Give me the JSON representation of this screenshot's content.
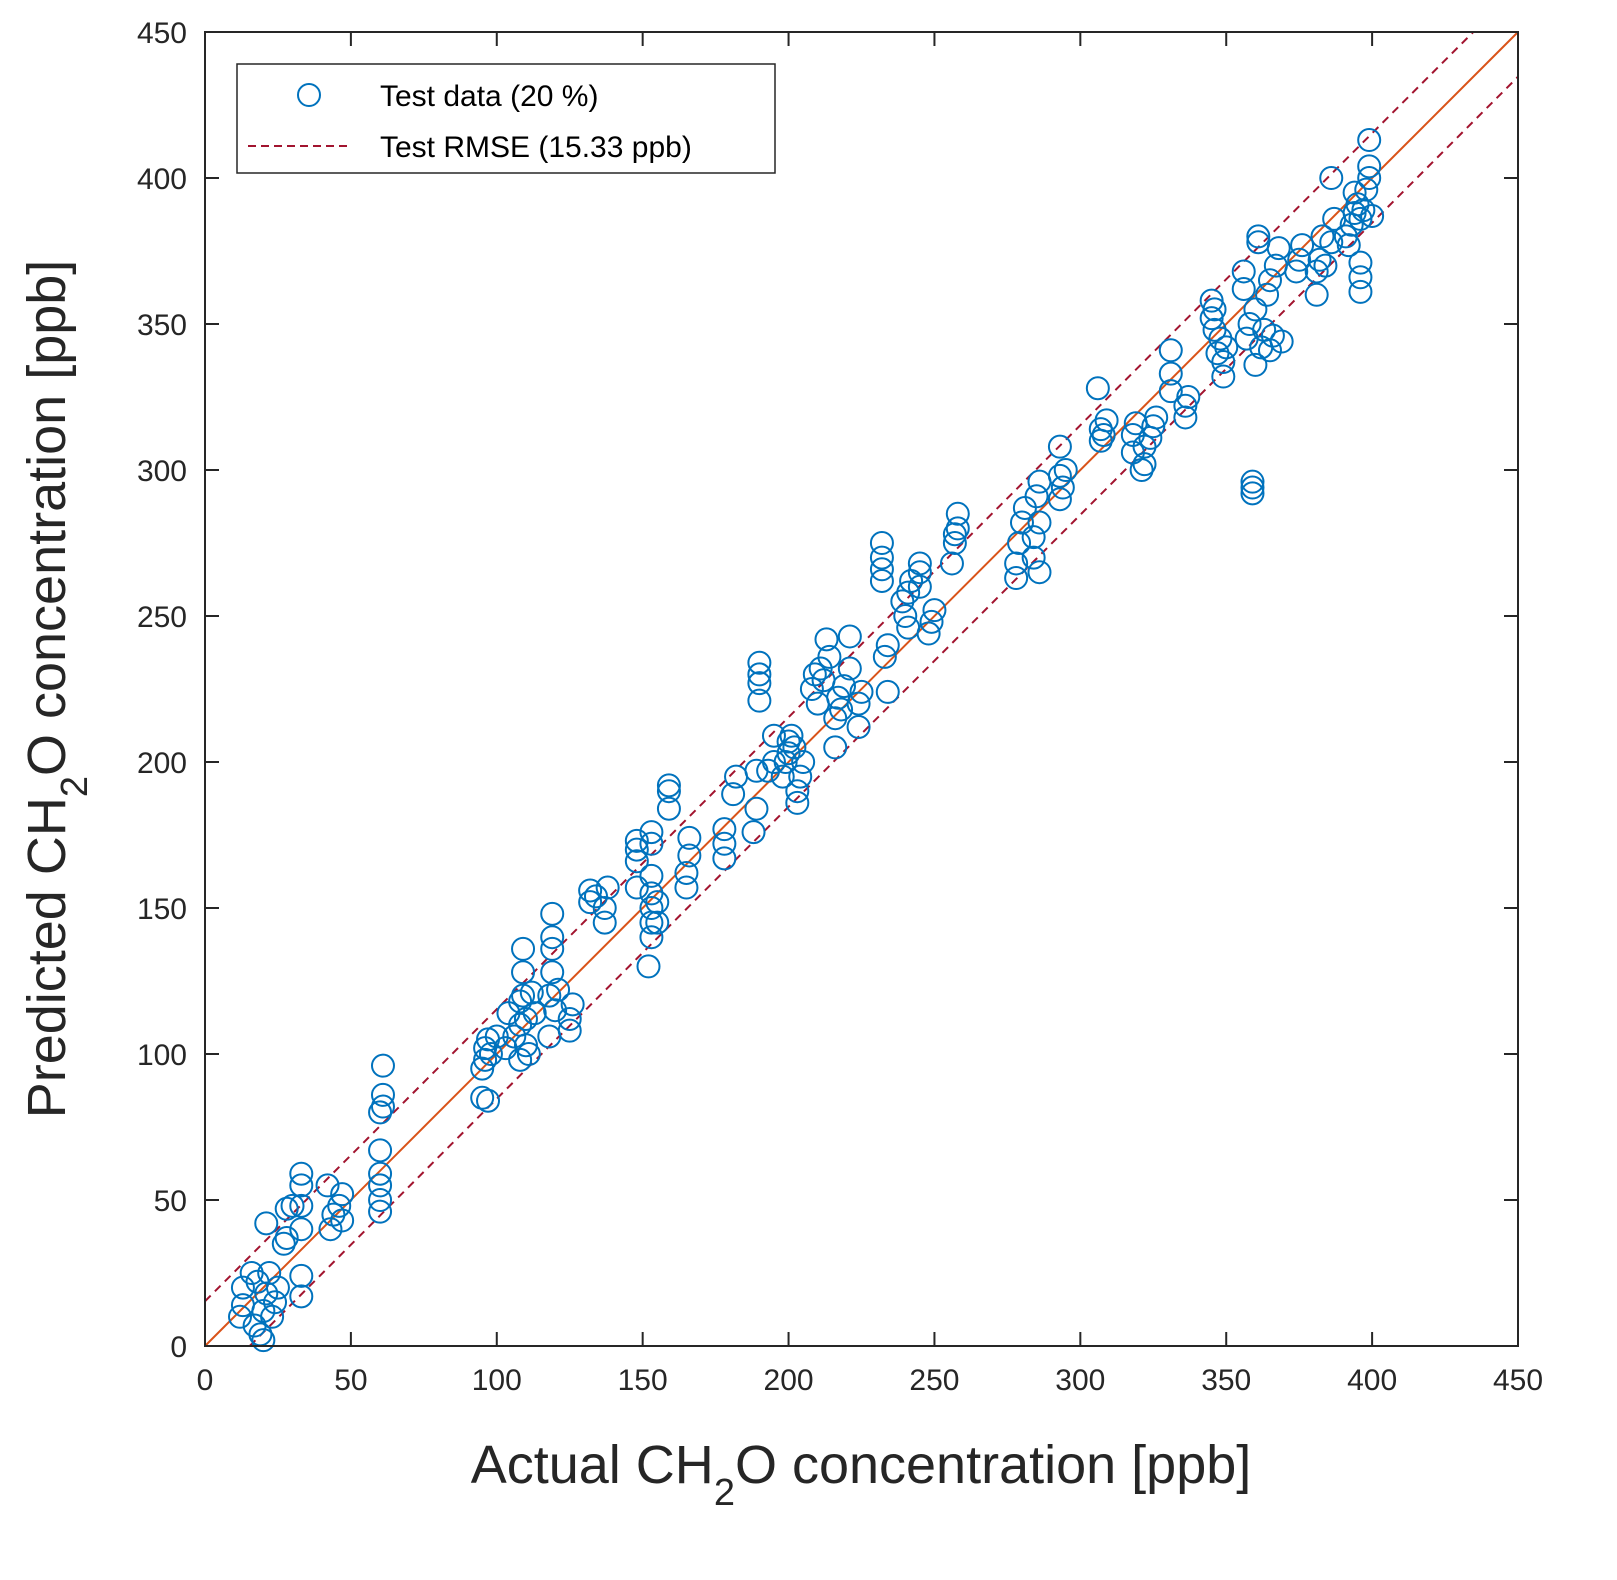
{
  "chart_data": {
    "type": "scatter",
    "title": "",
    "xlabel": {
      "pre": "Actual CH",
      "sub": "2",
      "post": "O concentration [ppb]"
    },
    "ylabel": {
      "pre": "Predicted CH",
      "sub": "2",
      "post": "O concentration [ppb]"
    },
    "xlim": [
      0,
      450
    ],
    "ylim": [
      0,
      450
    ],
    "xticks": [
      0,
      50,
      100,
      150,
      200,
      250,
      300,
      350,
      400,
      450
    ],
    "yticks": [
      0,
      50,
      100,
      150,
      200,
      250,
      300,
      350,
      400,
      450
    ],
    "grid": false,
    "legend": {
      "placement": "top-left",
      "entries": [
        {
          "label": "Test data (20 %)",
          "marker": "circle",
          "color": "#0072BD"
        },
        {
          "label": "Test RMSE (15.33 ppb)",
          "line": "dashed",
          "color": "#A2142F"
        }
      ]
    },
    "reference_lines": [
      {
        "name": "identity",
        "slope": 1,
        "intercept": 0,
        "color": "#D95319",
        "style": "solid"
      },
      {
        "name": "rmse-upper",
        "slope": 1,
        "intercept": 15.33,
        "color": "#A2142F",
        "style": "dashed"
      },
      {
        "name": "rmse-lower",
        "slope": 1,
        "intercept": -15.33,
        "color": "#A2142F",
        "style": "dashed"
      }
    ],
    "series": [
      {
        "name": "Test data (20 %)",
        "color": "#0072BD",
        "points": [
          [
            12,
            10
          ],
          [
            13,
            14
          ],
          [
            13,
            20
          ],
          [
            16,
            25
          ],
          [
            17,
            7
          ],
          [
            18,
            22
          ],
          [
            19,
            4
          ],
          [
            20,
            2
          ],
          [
            20,
            12
          ],
          [
            21,
            18
          ],
          [
            21,
            42
          ],
          [
            22,
            25
          ],
          [
            23,
            10
          ],
          [
            24,
            15
          ],
          [
            25,
            20
          ],
          [
            27,
            35
          ],
          [
            28,
            37
          ],
          [
            28,
            47
          ],
          [
            30,
            48
          ],
          [
            33,
            17
          ],
          [
            33,
            24
          ],
          [
            33,
            40
          ],
          [
            33,
            48
          ],
          [
            33,
            55
          ],
          [
            33,
            59
          ],
          [
            42,
            55
          ],
          [
            43,
            40
          ],
          [
            44,
            45
          ],
          [
            46,
            48
          ],
          [
            47,
            43
          ],
          [
            47,
            52
          ],
          [
            60,
            46
          ],
          [
            60,
            50
          ],
          [
            60,
            55
          ],
          [
            60,
            59
          ],
          [
            60,
            67
          ],
          [
            60,
            80
          ],
          [
            61,
            82
          ],
          [
            61,
            86
          ],
          [
            61,
            96
          ],
          [
            95,
            85
          ],
          [
            95,
            95
          ],
          [
            96,
            98
          ],
          [
            96,
            102
          ],
          [
            97,
            84
          ],
          [
            97,
            105
          ],
          [
            98,
            100
          ],
          [
            100,
            106
          ],
          [
            103,
            102
          ],
          [
            104,
            114
          ],
          [
            106,
            106
          ],
          [
            108,
            98
          ],
          [
            108,
            110
          ],
          [
            108,
            118
          ],
          [
            109,
            120
          ],
          [
            109,
            128
          ],
          [
            109,
            136
          ],
          [
            110,
            103
          ],
          [
            110,
            112
          ],
          [
            111,
            100
          ],
          [
            112,
            121
          ],
          [
            113,
            114
          ],
          [
            118,
            106
          ],
          [
            118,
            120
          ],
          [
            119,
            128
          ],
          [
            119,
            136
          ],
          [
            119,
            140
          ],
          [
            119,
            148
          ],
          [
            120,
            115
          ],
          [
            121,
            122
          ],
          [
            125,
            108
          ],
          [
            125,
            112
          ],
          [
            126,
            117
          ],
          [
            132,
            152
          ],
          [
            132,
            156
          ],
          [
            134,
            154
          ],
          [
            137,
            145
          ],
          [
            137,
            150
          ],
          [
            138,
            157
          ],
          [
            148,
            157
          ],
          [
            148,
            166
          ],
          [
            148,
            170
          ],
          [
            148,
            173
          ],
          [
            152,
            130
          ],
          [
            153,
            140
          ],
          [
            153,
            145
          ],
          [
            153,
            150
          ],
          [
            153,
            155
          ],
          [
            153,
            161
          ],
          [
            153,
            172
          ],
          [
            153,
            176
          ],
          [
            155,
            145
          ],
          [
            155,
            152
          ],
          [
            159,
            184
          ],
          [
            159,
            190
          ],
          [
            159,
            192
          ],
          [
            165,
            157
          ],
          [
            165,
            162
          ],
          [
            166,
            168
          ],
          [
            166,
            174
          ],
          [
            178,
            167
          ],
          [
            178,
            172
          ],
          [
            178,
            177
          ],
          [
            181,
            189
          ],
          [
            182,
            195
          ],
          [
            188,
            176
          ],
          [
            189,
            184
          ],
          [
            189,
            197
          ],
          [
            190,
            221
          ],
          [
            190,
            227
          ],
          [
            190,
            230
          ],
          [
            190,
            234
          ],
          [
            193,
            197
          ],
          [
            195,
            200
          ],
          [
            195,
            209
          ],
          [
            198,
            195
          ],
          [
            199,
            200
          ],
          [
            200,
            203
          ],
          [
            200,
            207
          ],
          [
            201,
            209
          ],
          [
            202,
            205
          ],
          [
            203,
            190
          ],
          [
            203,
            186
          ],
          [
            204,
            195
          ],
          [
            205,
            200
          ],
          [
            208,
            225
          ],
          [
            209,
            230
          ],
          [
            210,
            220
          ],
          [
            211,
            232
          ],
          [
            212,
            228
          ],
          [
            213,
            242
          ],
          [
            214,
            236
          ],
          [
            216,
            205
          ],
          [
            216,
            215
          ],
          [
            217,
            222
          ],
          [
            218,
            218
          ],
          [
            219,
            226
          ],
          [
            221,
            232
          ],
          [
            221,
            243
          ],
          [
            224,
            212
          ],
          [
            224,
            220
          ],
          [
            225,
            224
          ],
          [
            232,
            262
          ],
          [
            232,
            266
          ],
          [
            232,
            270
          ],
          [
            232,
            275
          ],
          [
            233,
            236
          ],
          [
            234,
            240
          ],
          [
            234,
            224
          ],
          [
            239,
            255
          ],
          [
            240,
            250
          ],
          [
            241,
            246
          ],
          [
            241,
            258
          ],
          [
            242,
            262
          ],
          [
            245,
            260
          ],
          [
            245,
            265
          ],
          [
            245,
            268
          ],
          [
            248,
            244
          ],
          [
            249,
            248
          ],
          [
            250,
            252
          ],
          [
            256,
            268
          ],
          [
            257,
            275
          ],
          [
            257,
            278
          ],
          [
            258,
            280
          ],
          [
            258,
            285
          ],
          [
            278,
            263
          ],
          [
            278,
            268
          ],
          [
            279,
            275
          ],
          [
            280,
            282
          ],
          [
            281,
            287
          ],
          [
            284,
            270
          ],
          [
            284,
            277
          ],
          [
            285,
            291
          ],
          [
            286,
            265
          ],
          [
            286,
            282
          ],
          [
            286,
            296
          ],
          [
            293,
            290
          ],
          [
            293,
            298
          ],
          [
            293,
            308
          ],
          [
            294,
            294
          ],
          [
            295,
            300
          ],
          [
            306,
            328
          ],
          [
            307,
            310
          ],
          [
            307,
            314
          ],
          [
            308,
            312
          ],
          [
            309,
            317
          ],
          [
            318,
            306
          ],
          [
            318,
            312
          ],
          [
            319,
            316
          ],
          [
            321,
            300
          ],
          [
            322,
            302
          ],
          [
            322,
            308
          ],
          [
            324,
            311
          ],
          [
            325,
            315
          ],
          [
            326,
            318
          ],
          [
            331,
            327
          ],
          [
            331,
            333
          ],
          [
            331,
            341
          ],
          [
            336,
            318
          ],
          [
            336,
            322
          ],
          [
            337,
            325
          ],
          [
            345,
            352
          ],
          [
            345,
            358
          ],
          [
            346,
            355
          ],
          [
            346,
            348
          ],
          [
            347,
            340
          ],
          [
            348,
            345
          ],
          [
            349,
            332
          ],
          [
            349,
            337
          ],
          [
            350,
            342
          ],
          [
            356,
            362
          ],
          [
            356,
            368
          ],
          [
            357,
            345
          ],
          [
            358,
            350
          ],
          [
            359,
            294
          ],
          [
            359,
            296
          ],
          [
            359,
            292
          ],
          [
            360,
            355
          ],
          [
            360,
            336
          ],
          [
            361,
            378
          ],
          [
            361,
            380
          ],
          [
            362,
            342
          ],
          [
            363,
            348
          ],
          [
            364,
            360
          ],
          [
            365,
            341
          ],
          [
            365,
            365
          ],
          [
            366,
            346
          ],
          [
            367,
            370
          ],
          [
            368,
            376
          ],
          [
            369,
            344
          ],
          [
            374,
            368
          ],
          [
            375,
            372
          ],
          [
            376,
            377
          ],
          [
            381,
            360
          ],
          [
            381,
            368
          ],
          [
            382,
            372
          ],
          [
            383,
            380
          ],
          [
            384,
            370
          ],
          [
            386,
            378
          ],
          [
            386,
            400
          ],
          [
            387,
            386
          ],
          [
            391,
            380
          ],
          [
            392,
            377
          ],
          [
            393,
            384
          ],
          [
            394,
            388
          ],
          [
            394,
            395
          ],
          [
            395,
            391
          ],
          [
            396,
            361
          ],
          [
            396,
            366
          ],
          [
            396,
            371
          ],
          [
            396,
            386
          ],
          [
            397,
            389
          ],
          [
            398,
            396
          ],
          [
            399,
            400
          ],
          [
            399,
            404
          ],
          [
            399,
            413
          ],
          [
            400,
            387
          ]
        ]
      }
    ]
  }
}
